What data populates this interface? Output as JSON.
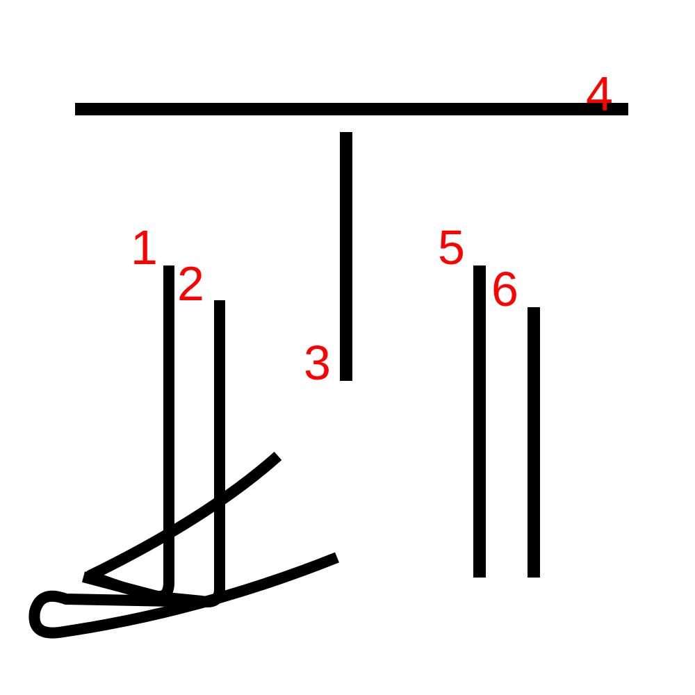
{
  "colors": {
    "stroke": "#000000",
    "label": "#ff0000",
    "background": "#ffffff"
  },
  "labels": {
    "l1": "1",
    "l2": "2",
    "l3": "3",
    "l4": "4",
    "l5": "5",
    "l6": "6"
  }
}
